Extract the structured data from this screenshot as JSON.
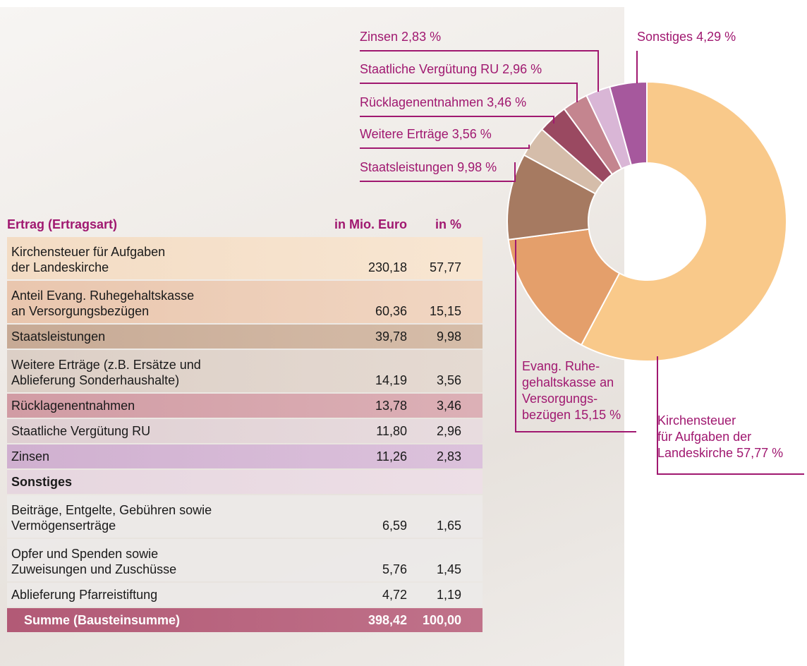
{
  "table": {
    "header": [
      "Ertrag (Ertragsart)",
      "in Mio. Euro",
      "in %"
    ],
    "rows": [
      [
        "Kirchensteuer für Aufgaben\nder Landeskirche",
        "230,18",
        "57,77"
      ],
      [
        "Anteil Evang. Ruhegehaltskasse\nan Versorgungsbezügen",
        "60,36",
        "15,15"
      ],
      [
        "Staatsleistungen",
        "39,78",
        "9,98"
      ],
      [
        "Weitere Erträge (z.B. Ersätze und\nAblieferung Sonderhaushalte)",
        "14,19",
        "3,56"
      ],
      [
        "Rücklagenentnahmen",
        "13,78",
        "3,46"
      ],
      [
        "Staatliche Vergütung RU",
        "11,80",
        "2,96"
      ],
      [
        "Zinsen",
        "11,26",
        "2,83"
      ],
      [
        "Sonstiges"
      ],
      [
        "Beiträge, Entgelte, Gebühren sowie\nVermögenserträge",
        "6,59",
        "1,65"
      ],
      [
        "Opfer und Spenden sowie\nZuweisungen und Zuschüsse",
        "5,76",
        "1,45"
      ],
      [
        "Ablieferung Pfarreistiftung",
        "4,72",
        "1,19"
      ]
    ],
    "footer": [
      "Summe (Bausteinsumme)",
      "398,42",
      "100,00"
    ]
  },
  "chart_data": {
    "type": "donut",
    "categories": [
      "Kirchensteuer\nfür Aufgaben der\nLandeskirche",
      "Evang. Ruhe-\ngehaltskasse an\nVersorgungs-\nbezügen",
      "Staatsleistungen",
      "Weitere Erträge",
      "Rücklagenentnahmen",
      "Staatliche Vergütung RU",
      "Zinsen",
      "Sonstiges"
    ],
    "values": [
      57.77,
      15.15,
      9.98,
      3.56,
      3.46,
      2.96,
      2.83,
      4.29
    ],
    "value_labels": [
      "57,77 %",
      "15,15 %",
      "9,98 %",
      "3,56 %",
      "3,46 %",
      "2,96 %",
      "2,83 %",
      "4,29 %"
    ],
    "colors": [
      "#f9c98a",
      "#e49f6b",
      "#a67a61",
      "#d5bdaa",
      "#9a4961",
      "#c4858f",
      "#d9b6d6",
      "#a6589d"
    ]
  }
}
